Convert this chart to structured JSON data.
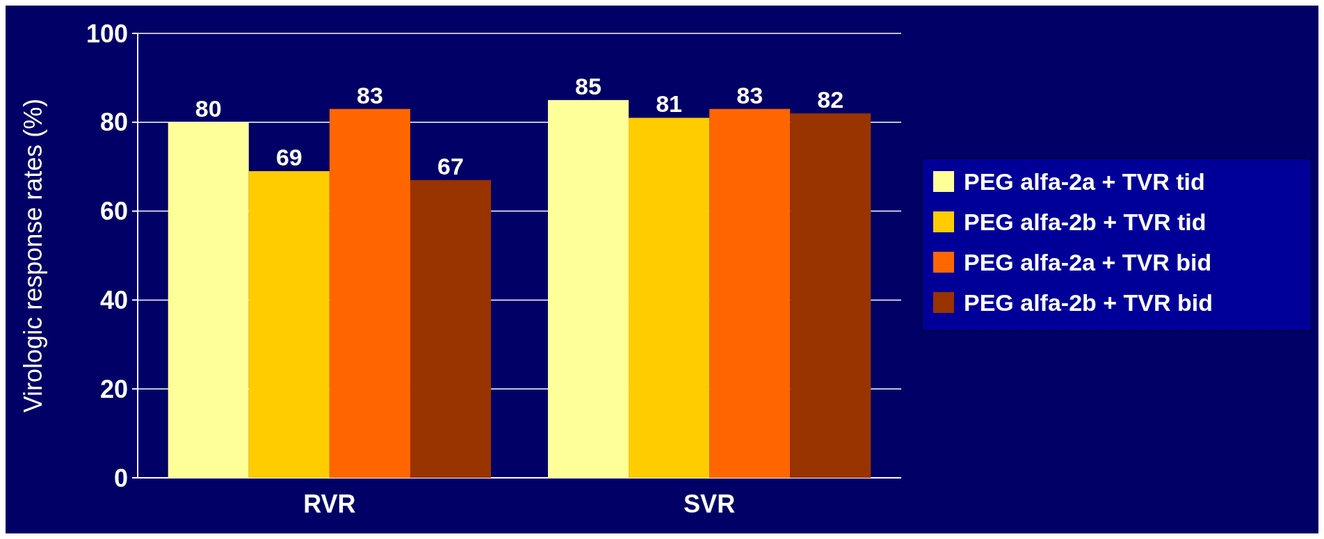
{
  "chart_data": {
    "type": "bar",
    "ylabel": "Virologic response rates (%)",
    "categories": [
      "RVR",
      "SVR"
    ],
    "series": [
      {
        "name": "PEG alfa-2a + TVR tid",
        "color": "#ffff99",
        "values": [
          80,
          85
        ]
      },
      {
        "name": "PEG alfa-2b + TVR tid",
        "color": "#ffcc00",
        "values": [
          69,
          81
        ]
      },
      {
        "name": "PEG alfa-2a + TVR bid",
        "color": "#ff6600",
        "values": [
          83,
          83
        ]
      },
      {
        "name": "PEG alfa-2b + TVR bid",
        "color": "#993300",
        "values": [
          67,
          82
        ]
      }
    ],
    "ylim": [
      0,
      100
    ],
    "yticks": [
      0,
      20,
      40,
      60,
      80,
      100
    ],
    "grid": "y",
    "legend": "right",
    "data_labels": true
  }
}
